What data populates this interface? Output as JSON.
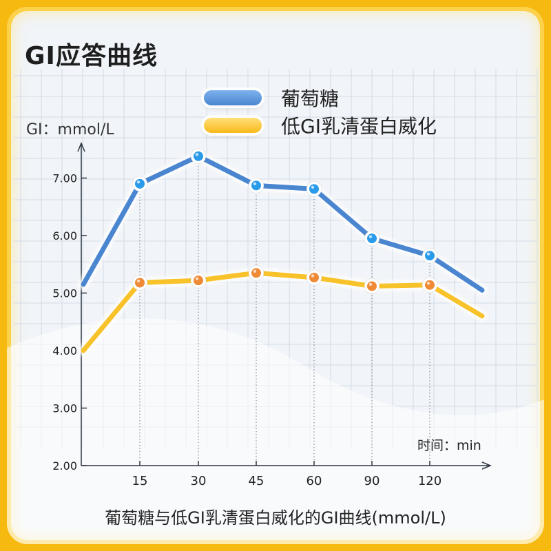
{
  "page": {
    "title": "GI应答曲线",
    "caption": "葡萄糖与低GI乳清蛋白威化的GI曲线(mmol/L)"
  },
  "colors": {
    "glucose": "#4a86d0",
    "glucose_point": "#2a9bea",
    "whey": "#f8c22a",
    "whey_point": "#ef8a36",
    "border": "#f6b90f"
  },
  "chart_data": {
    "type": "line",
    "title": "GI应答曲线",
    "ylabel": "GI：mmol/L",
    "xlabel": "时间：min",
    "categories": [
      "15",
      "30",
      "45",
      "60",
      "90",
      "120"
    ],
    "yticks": [
      "2.00",
      "3.00",
      "4.00",
      "5.00",
      "6.00",
      "7.00"
    ],
    "ylim": [
      2.0,
      7.5
    ],
    "grid": true,
    "legend_position": "top",
    "series": [
      {
        "name": "葡萄糖",
        "color": "#4a86d0",
        "values": [
          6.9,
          7.38,
          6.87,
          6.81,
          5.95,
          5.65
        ],
        "start_value": 5.15,
        "end_value": 5.05
      },
      {
        "name": "低GI乳清蛋白威化",
        "color": "#f8c22a",
        "values": [
          5.18,
          5.22,
          5.35,
          5.27,
          5.12,
          5.14
        ],
        "start_value": 4.0,
        "end_value": 4.6
      }
    ]
  }
}
